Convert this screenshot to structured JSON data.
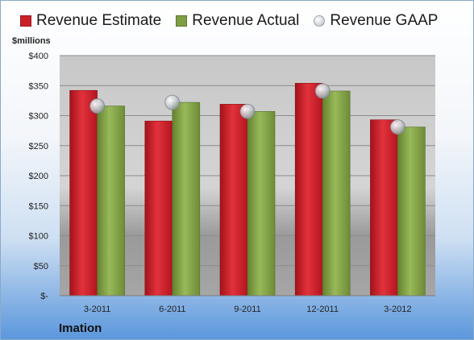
{
  "chart_data": {
    "type": "bar",
    "title": "",
    "units_label": "$millions",
    "company": "Imation",
    "categories": [
      "3-2011",
      "6-2011",
      "9-2011",
      "12-2011",
      "3-2012"
    ],
    "series": [
      {
        "name": "Revenue Estimate",
        "kind": "bar",
        "color": "#cc1f2a",
        "values": [
          342,
          291,
          319,
          354,
          293
        ]
      },
      {
        "name": "Revenue Actual",
        "kind": "bar",
        "color": "#7f9e44",
        "values": [
          316,
          322,
          307,
          341,
          281
        ]
      },
      {
        "name": "Revenue GAAP",
        "kind": "marker",
        "color": "#c8ccd2",
        "values": [
          316,
          322,
          307,
          341,
          281
        ]
      }
    ],
    "yticks": [
      "$-",
      "$50",
      "$100",
      "$150",
      "$200",
      "$250",
      "$300",
      "$350",
      "$400"
    ],
    "ylim": [
      0,
      400
    ],
    "grid": true,
    "legend_position": "top"
  }
}
